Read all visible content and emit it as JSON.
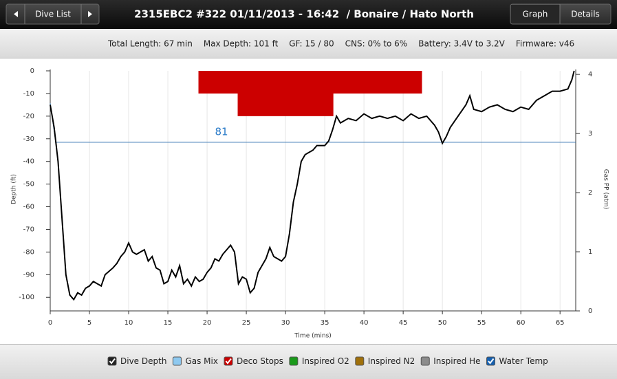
{
  "header": {
    "nav_button": "Dive List",
    "title": "2315EBC2 #322 01/11/2013 - 16:42  / Bonaire / Hato North",
    "tabs": [
      "Graph",
      "Details"
    ]
  },
  "stats": [
    "Total Length: 67 min",
    "Max Depth: 101 ft",
    "GF: 15 / 80",
    "CNS: 0% to 6%",
    "Battery: 3.4V to 3.2V",
    "Firmware: v46"
  ],
  "chart_data": {
    "type": "line",
    "xlabel": "Time (mins)",
    "ylabel": "Depth (ft)",
    "y2label": "Gas PP (atm)",
    "xlim": [
      0,
      67
    ],
    "xticks": [
      0,
      5,
      10,
      15,
      20,
      25,
      30,
      35,
      40,
      45,
      50,
      55,
      60,
      65
    ],
    "ylim": [
      -106,
      0
    ],
    "yticks": [
      -100,
      -90,
      -80,
      -70,
      -60,
      -50,
      -40,
      -30,
      -20,
      -10,
      0
    ],
    "y2lim": [
      0,
      4.06
    ],
    "y2ticks": [
      0,
      1,
      2,
      3,
      4
    ],
    "grid": true,
    "depth": {
      "color": "#000000",
      "x": [
        0,
        0.5,
        1,
        1.5,
        2,
        2.5,
        3,
        3.5,
        4,
        4.5,
        5,
        5.5,
        6,
        6.5,
        7,
        8,
        8.5,
        9,
        9.5,
        10,
        10.5,
        11,
        11.5,
        12,
        12.5,
        13,
        13.5,
        14,
        14.5,
        15,
        15.5,
        16,
        16.5,
        17,
        17.5,
        18,
        18.5,
        19,
        19.5,
        20,
        20.5,
        21,
        21.5,
        22,
        22.5,
        23,
        23.5,
        24,
        24.5,
        25,
        25.5,
        26,
        26.5,
        27,
        27.5,
        28,
        28.5,
        29,
        29.5,
        30,
        30.5,
        31,
        31.5,
        32,
        32.5,
        33,
        33.5,
        34,
        35,
        35.5,
        36,
        36.5,
        37,
        38,
        39,
        40,
        41,
        42,
        43,
        44,
        45,
        46,
        47,
        48,
        49,
        49.5,
        50,
        50.5,
        51,
        52,
        53,
        53.5,
        54,
        55,
        56,
        57,
        58,
        59,
        60,
        61,
        62,
        63,
        64,
        65,
        66,
        66.5,
        66.8
      ],
      "values": [
        -15,
        -25,
        -40,
        -65,
        -90,
        -99,
        -101,
        -98,
        -99,
        -96,
        -95,
        -93,
        -94,
        -95,
        -90,
        -87,
        -85,
        -82,
        -80,
        -76,
        -80,
        -81,
        -80,
        -79,
        -84,
        -82,
        -87,
        -88,
        -94,
        -93,
        -88,
        -91,
        -86,
        -94,
        -92,
        -95,
        -91,
        -93,
        -92,
        -89,
        -87,
        -83,
        -84,
        -81,
        -79,
        -77,
        -80,
        -94,
        -91,
        -92,
        -98,
        -96,
        -89,
        -86,
        -83,
        -78,
        -82,
        -83,
        -84,
        -82,
        -72,
        -58,
        -50,
        -40,
        -37,
        -36,
        -35,
        -33,
        -33,
        -31,
        -26,
        -20,
        -23,
        -21,
        -22,
        -19,
        -21,
        -20,
        -21,
        -20,
        -22,
        -19,
        -21,
        -20,
        -24,
        -27,
        -32,
        -29,
        -25,
        -20,
        -15,
        -11,
        -17,
        -18,
        -16,
        -15,
        -17,
        -18,
        -16,
        -17,
        -13,
        -11,
        -9,
        -9,
        -8,
        -4,
        0
      ]
    },
    "deco_stops": {
      "color": "#cc0000",
      "x": [
        [
          18.9,
          47.4
        ],
        [
          23.9,
          36.1
        ]
      ],
      "values": [
        -10,
        -20
      ]
    },
    "water_temp": {
      "color": "#2a6fad",
      "temp_lim": [
        68,
        86.5
      ],
      "x": [
        0,
        0.7,
        67
      ],
      "values": [
        84,
        81,
        81
      ],
      "label_index": 1
    },
    "legend": [
      {
        "label": "Dive Depth",
        "color": "#222222",
        "checked": true
      },
      {
        "label": "Gas Mix",
        "color": "#8ec9f0",
        "checked": false
      },
      {
        "label": "Deco Stops",
        "color": "#cc0000",
        "checked": true
      },
      {
        "label": "Inspired O2",
        "color": "#1a9a1a",
        "checked": false
      },
      {
        "label": "Inspired N2",
        "color": "#a0700a",
        "checked": false
      },
      {
        "label": "Inspired He",
        "color": "#8c8c8c",
        "checked": false
      },
      {
        "label": "Water Temp",
        "color": "#1560b0",
        "checked": true
      }
    ]
  }
}
